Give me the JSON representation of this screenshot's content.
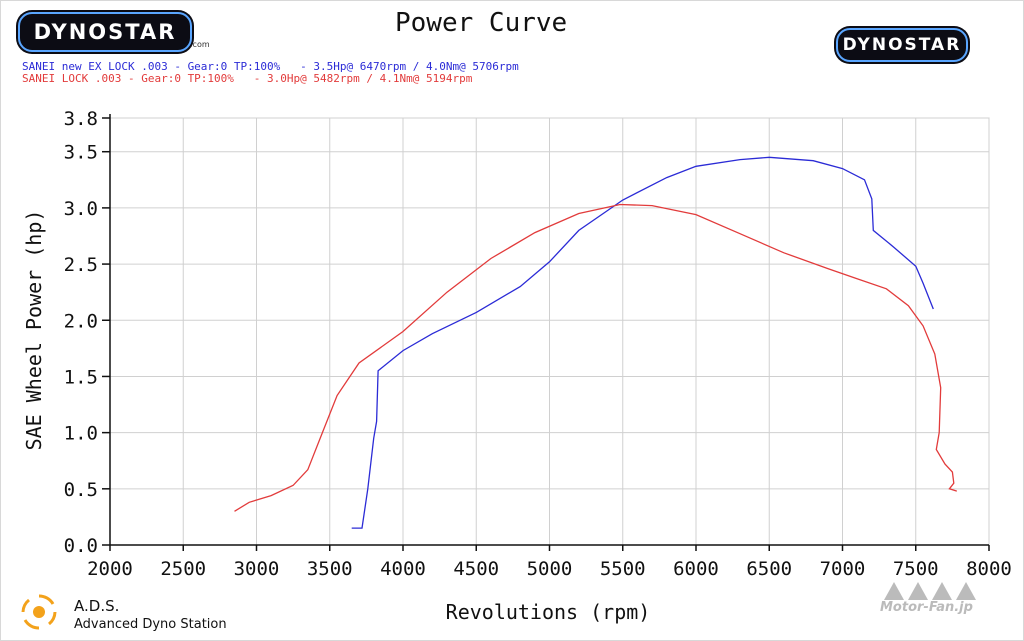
{
  "header": {
    "title": "Power Curve",
    "logo_left": "DYNOSTAR",
    "logo_right": "DYNOSTAR",
    "logo_sub": ".com"
  },
  "legend": {
    "run1": "SANEI new EX LOCK .003 - Gear:0 TP:100%   - 3.5Hp@ 6470rpm / 4.0Nm@ 5706rpm",
    "run2": "SANEI LOCK .003 - Gear:0 TP:100%   - 3.0Hp@ 5482rpm / 4.1Nm@ 5194rpm"
  },
  "footer": {
    "ads_name": "A.D.S.",
    "ads_sub": "Advanced Dyno Station",
    "watermark": "Motor-Fan.jp"
  },
  "colors": {
    "run1": "#2b2bd6",
    "run2": "#e23b3b",
    "grid": "#d0d0d0"
  },
  "chart_data": {
    "type": "line",
    "title": "Power Curve",
    "xlabel": "Revolutions (rpm)",
    "ylabel": "SAE Wheel Power (hp)",
    "xlim": [
      2000,
      8000
    ],
    "ylim": [
      0.0,
      3.8
    ],
    "x_ticks": [
      2000,
      2500,
      3000,
      3500,
      4000,
      4500,
      5000,
      5500,
      6000,
      6500,
      7000,
      7500,
      8000
    ],
    "y_ticks": [
      0.0,
      0.5,
      1.0,
      1.5,
      2.0,
      2.5,
      3.0,
      3.5,
      3.8
    ],
    "y_tick_labels": [
      "0.0",
      "0.5",
      "1.0",
      "1.5",
      "2.0",
      "2.5",
      "3.0",
      "3.5",
      "3.8"
    ],
    "grid": true,
    "series": [
      {
        "name": "SANEI new EX LOCK .003",
        "points": [
          [
            3650,
            0.15
          ],
          [
            3720,
            0.15
          ],
          [
            3760,
            0.5
          ],
          [
            3800,
            0.95
          ],
          [
            3820,
            1.1
          ],
          [
            3830,
            1.55
          ],
          [
            4000,
            1.73
          ],
          [
            4200,
            1.88
          ],
          [
            4500,
            2.07
          ],
          [
            4800,
            2.3
          ],
          [
            5000,
            2.52
          ],
          [
            5200,
            2.8
          ],
          [
            5500,
            3.07
          ],
          [
            5800,
            3.27
          ],
          [
            6000,
            3.37
          ],
          [
            6300,
            3.43
          ],
          [
            6500,
            3.45
          ],
          [
            6800,
            3.42
          ],
          [
            7000,
            3.35
          ],
          [
            7150,
            3.25
          ],
          [
            7200,
            3.08
          ],
          [
            7210,
            2.8
          ],
          [
            7350,
            2.65
          ],
          [
            7500,
            2.48
          ],
          [
            7550,
            2.33
          ],
          [
            7620,
            2.1
          ]
        ]
      },
      {
        "name": "SANEI LOCK .003",
        "points": [
          [
            2850,
            0.3
          ],
          [
            2950,
            0.38
          ],
          [
            3100,
            0.44
          ],
          [
            3250,
            0.53
          ],
          [
            3350,
            0.67
          ],
          [
            3450,
            1.0
          ],
          [
            3550,
            1.33
          ],
          [
            3700,
            1.62
          ],
          [
            4000,
            1.9
          ],
          [
            4300,
            2.25
          ],
          [
            4600,
            2.55
          ],
          [
            4900,
            2.78
          ],
          [
            5200,
            2.95
          ],
          [
            5482,
            3.03
          ],
          [
            5700,
            3.02
          ],
          [
            6000,
            2.94
          ],
          [
            6300,
            2.77
          ],
          [
            6600,
            2.6
          ],
          [
            6900,
            2.46
          ],
          [
            7100,
            2.37
          ],
          [
            7300,
            2.28
          ],
          [
            7450,
            2.13
          ],
          [
            7550,
            1.95
          ],
          [
            7630,
            1.7
          ],
          [
            7670,
            1.4
          ],
          [
            7660,
            1.0
          ],
          [
            7640,
            0.85
          ],
          [
            7700,
            0.72
          ],
          [
            7750,
            0.65
          ],
          [
            7760,
            0.55
          ],
          [
            7730,
            0.5
          ],
          [
            7780,
            0.48
          ]
        ]
      }
    ]
  }
}
